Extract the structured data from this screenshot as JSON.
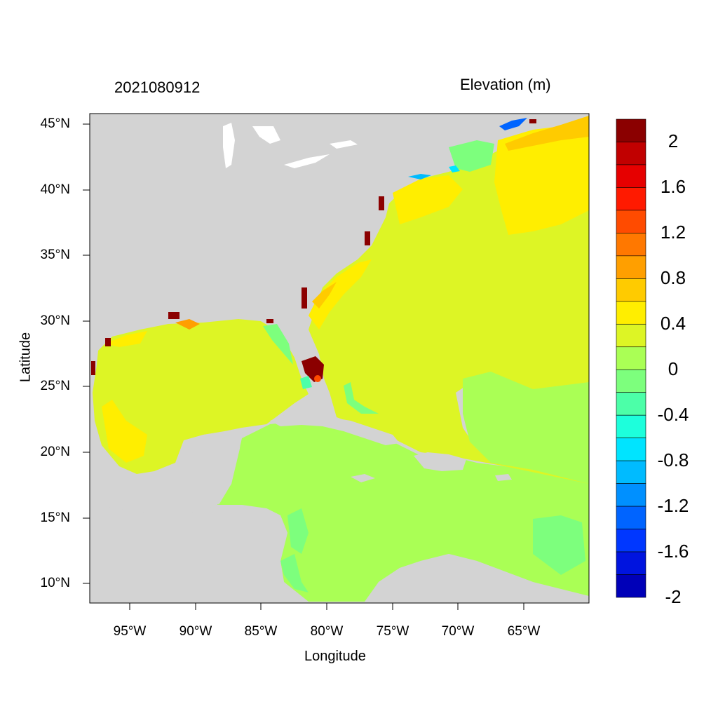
{
  "title": {
    "left": "2021080912",
    "right": "Elevation (m)"
  },
  "axes": {
    "xlabel": "Longitude",
    "ylabel": "Latitude",
    "xticks": [
      "95°W",
      "90°W",
      "85°W",
      "80°W",
      "75°W",
      "70°W",
      "65°W"
    ],
    "yticks": [
      "45°N",
      "40°N",
      "35°N",
      "30°N",
      "25°N",
      "20°N",
      "15°N",
      "10°N"
    ],
    "lon_range": [
      -98,
      -60
    ],
    "lat_range": [
      8.5,
      46
    ]
  },
  "colorbar": {
    "labels": [
      "2",
      "1.6",
      "1.2",
      "0.8",
      "0.4",
      "0",
      "-0.4",
      "-0.8",
      "-1.2",
      "-1.6",
      "-2"
    ],
    "colors": [
      "#8b0000",
      "#c10000",
      "#e60000",
      "#ff1a00",
      "#ff4b00",
      "#ff7800",
      "#ff9f00",
      "#ffcb00",
      "#ffee00",
      "#ddf525",
      "#aaff55",
      "#7dff7d",
      "#4cffa8",
      "#1dffdc",
      "#00e4ff",
      "#00bbff",
      "#0090ff",
      "#0064ff",
      "#0037ff",
      "#0014df",
      "#0000b8"
    ]
  },
  "colors": {
    "land": "#d3d3d3",
    "ocean_main": "#ddf525",
    "caribbean": "#aaff55",
    "extreme_high": "#8b0000"
  }
}
